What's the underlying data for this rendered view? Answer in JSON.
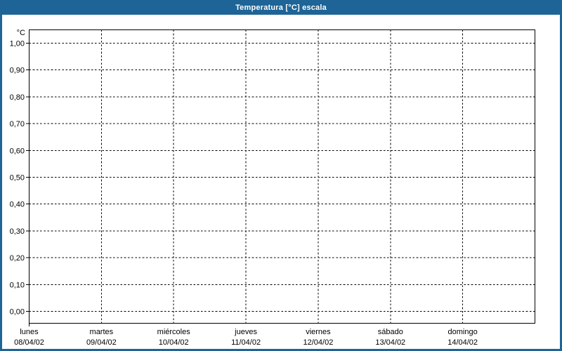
{
  "window": {
    "title": "Temperatura [°C] escala"
  },
  "colors": {
    "header_bg": "#1E6496",
    "window_border": "#1E6496",
    "title_text": "#FFFFFF",
    "plot_border": "#000000",
    "grid_line": "#000000",
    "label_text": "#000000",
    "plot_bg": "#FFFFFF",
    "page_bg": "#FFFFFF"
  },
  "chart_data": {
    "type": "line",
    "title": "Temperatura [°C] escala",
    "y_axis": {
      "unit_label": "°C",
      "min": 0.0,
      "max": 1.0,
      "step": 0.1,
      "decimal_separator": ",",
      "tick_labels_top_to_bottom": [
        "1,00",
        "0,90",
        "0,80",
        "0,70",
        "0,60",
        "0,50",
        "0,40",
        "0,30",
        "0,20",
        "0,10",
        "0,00"
      ]
    },
    "x_axis": {
      "categories": [
        {
          "day": "lunes",
          "date": "08/04/02"
        },
        {
          "day": "martes",
          "date": "09/04/02"
        },
        {
          "day": "miércoles",
          "date": "10/04/02"
        },
        {
          "day": "jueves",
          "date": "11/04/02"
        },
        {
          "day": "viernes",
          "date": "12/04/02"
        },
        {
          "day": "sábado",
          "date": "13/04/02"
        },
        {
          "day": "domingo",
          "date": "14/04/02"
        }
      ]
    },
    "series": [],
    "grid": "dashed",
    "legend": "none",
    "ylim": [
      0.0,
      1.0
    ]
  }
}
